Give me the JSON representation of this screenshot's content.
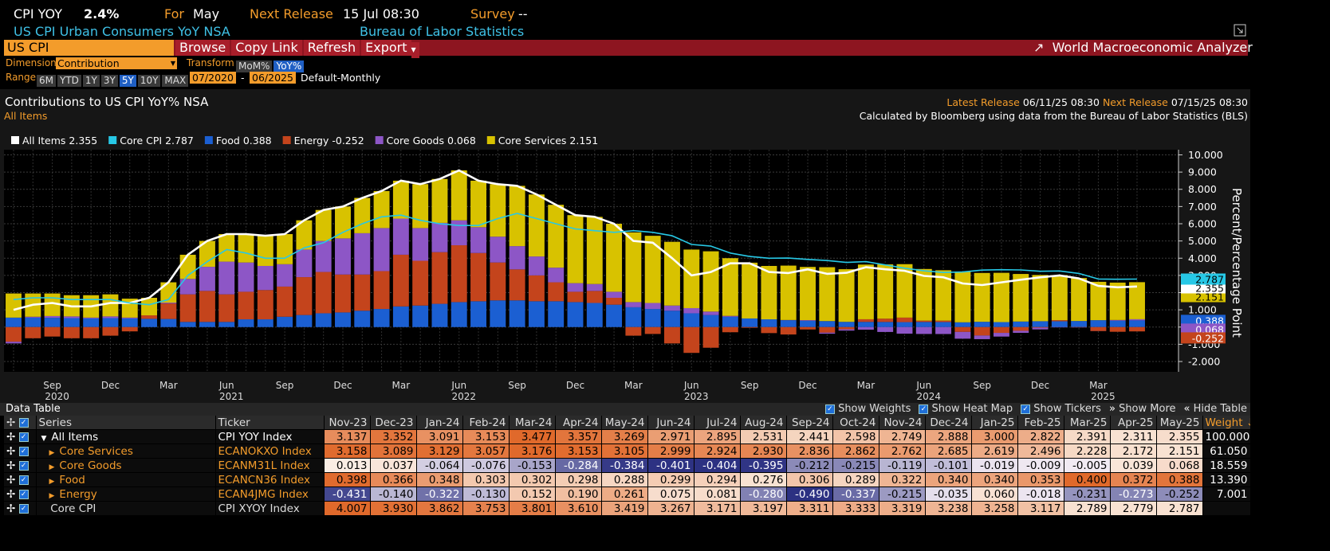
{
  "header": {
    "ticker": "CPI YOY",
    "value": "2.4%",
    "for_label": "For",
    "for_value": "May",
    "next_release_label": "Next Release",
    "next_release_value": "15 Jul 08:30",
    "survey_label": "Survey",
    "survey_value": "--",
    "description": "US CPI Urban Consumers YoY NSA",
    "source": "Bureau of Labor Statistics"
  },
  "toolbar": {
    "search": "US CPI",
    "buttons": [
      "Browse",
      "Copy Link",
      "Refresh",
      "Export"
    ],
    "app": "World Macroeconomic Analyzer"
  },
  "controls": {
    "dimension_label": "Dimension",
    "dimension": "Contribution",
    "transform_label": "Transform",
    "transforms": [
      "MoM%",
      "YoY%"
    ],
    "range_label": "Range",
    "ranges": [
      "6M",
      "YTD",
      "1Y",
      "3Y",
      "5Y",
      "10Y",
      "MAX"
    ],
    "start": "07/2020",
    "separator": "-",
    "end": "06/2025",
    "frequency": "Default-Monthly"
  },
  "chart_data": {
    "type": "bar",
    "title": "Contributions to US CPI YoY% NSA",
    "subtitle": "All Items",
    "latest_release_label": "Latest Release",
    "latest_release": "06/11/25 08:30",
    "next_release_label": "Next Release",
    "next_release": "07/15/25 08:30",
    "note": "Calculated by Bloomberg using data from the Bureau of Labor Statistics (BLS)",
    "y_label": "Percent/Percentage Point",
    "grid": true,
    "categories": [
      null,
      null,
      "Sep",
      null,
      null,
      "Dec",
      null,
      null,
      "Mar",
      null,
      null,
      "Jun",
      null,
      null,
      "Sep",
      null,
      null,
      "Dec",
      null,
      null,
      "Mar",
      null,
      null,
      "Jun",
      null,
      null,
      "Sep",
      null,
      null,
      "Dec",
      null,
      null,
      "Mar",
      null,
      null,
      "Jun",
      null,
      null,
      "Sep",
      null,
      null,
      "Dec",
      null,
      null,
      "Mar",
      null,
      null,
      "Jun",
      null,
      null,
      "Sep",
      null,
      null,
      "Dec",
      null,
      null,
      "Mar",
      null,
      null
    ],
    "year_labels": [
      null,
      null,
      "2020",
      null,
      null,
      null,
      null,
      null,
      null,
      null,
      null,
      "2021",
      null,
      null,
      null,
      null,
      null,
      null,
      null,
      null,
      null,
      null,
      null,
      "2022",
      null,
      null,
      null,
      null,
      null,
      null,
      null,
      null,
      null,
      null,
      null,
      "2023",
      null,
      null,
      null,
      null,
      null,
      null,
      null,
      null,
      null,
      null,
      null,
      "2024",
      null,
      null,
      null,
      null,
      null,
      null,
      null,
      null,
      "2025",
      null,
      null
    ],
    "ylim": [
      -2.6,
      10.3
    ],
    "yticks": [
      {
        "value": -2,
        "label": "-2.000"
      },
      {
        "value": -1,
        "label": "-1.000"
      },
      {
        "value": 0,
        "label": "0.000"
      },
      {
        "value": 1,
        "label": "1.000"
      },
      {
        "value": 2,
        "label": "2.000"
      },
      {
        "value": 3,
        "label": "3.000"
      },
      {
        "value": 4,
        "label": "4.000"
      },
      {
        "value": 5,
        "label": "5.000"
      },
      {
        "value": 6,
        "label": "6.000"
      },
      {
        "value": 7,
        "label": "7.000"
      },
      {
        "value": 8,
        "label": "8.000"
      },
      {
        "value": 9,
        "label": "9.000"
      },
      {
        "value": 10,
        "label": "10.000"
      }
    ],
    "series": [
      {
        "name": "All Items",
        "type": "line",
        "color": "#ffffff",
        "values": [
          1.0,
          1.3,
          1.4,
          1.2,
          1.2,
          1.4,
          1.4,
          1.7,
          2.6,
          4.2,
          5.0,
          5.4,
          5.4,
          5.3,
          5.4,
          6.2,
          6.8,
          7.0,
          7.5,
          7.9,
          8.5,
          8.3,
          8.6,
          9.1,
          8.5,
          8.3,
          8.2,
          7.7,
          7.1,
          6.5,
          6.4,
          6.0,
          5.0,
          4.9,
          4.0,
          3.0,
          3.2,
          3.7,
          3.7,
          3.2,
          3.137,
          3.352,
          3.091,
          3.153,
          3.477,
          3.357,
          3.269,
          2.971,
          2.895,
          2.531,
          2.441,
          2.598,
          2.749,
          2.888,
          3.0,
          2.822,
          2.391,
          2.311,
          2.355
        ]
      },
      {
        "name": "Core CPI",
        "type": "line",
        "color": "#27c8e6",
        "values": [
          1.6,
          1.7,
          1.7,
          1.6,
          1.6,
          1.6,
          1.4,
          1.3,
          1.6,
          3.0,
          3.8,
          4.5,
          4.3,
          4.0,
          4.0,
          4.6,
          4.9,
          5.5,
          6.0,
          6.4,
          6.5,
          6.2,
          6.0,
          5.9,
          5.9,
          6.3,
          6.6,
          6.3,
          6.0,
          5.7,
          5.6,
          5.5,
          5.6,
          5.5,
          5.3,
          4.8,
          4.7,
          4.3,
          4.1,
          4.0,
          4.007,
          3.93,
          3.862,
          3.753,
          3.801,
          3.61,
          3.419,
          3.267,
          3.171,
          3.197,
          3.311,
          3.333,
          3.319,
          3.238,
          3.258,
          3.117,
          2.789,
          2.779,
          2.787
        ]
      },
      {
        "name": "Food",
        "type": "bar",
        "color": "#1b5fd2",
        "values": [
          0.55,
          0.55,
          0.54,
          0.52,
          0.5,
          0.52,
          0.5,
          0.48,
          0.47,
          0.3,
          0.3,
          0.3,
          0.45,
          0.45,
          0.6,
          0.7,
          0.8,
          0.85,
          0.95,
          1.05,
          1.2,
          1.25,
          1.35,
          1.45,
          1.5,
          1.55,
          1.55,
          1.5,
          1.5,
          1.45,
          1.4,
          1.3,
          1.15,
          1.05,
          0.95,
          0.8,
          0.7,
          0.6,
          0.5,
          0.45,
          0.398,
          0.366,
          0.348,
          0.303,
          0.302,
          0.298,
          0.288,
          0.299,
          0.294,
          0.276,
          0.306,
          0.289,
          0.322,
          0.34,
          0.34,
          0.353,
          0.4,
          0.372,
          0.388
        ]
      },
      {
        "name": "Energy",
        "type": "bar",
        "color": "#c4441c",
        "values": [
          -0.85,
          -0.65,
          -0.55,
          -0.65,
          -0.65,
          -0.5,
          -0.25,
          0.2,
          0.9,
          1.6,
          1.8,
          1.6,
          1.6,
          1.7,
          1.75,
          2.2,
          2.4,
          2.2,
          2.1,
          2.2,
          3.0,
          2.6,
          3.0,
          3.3,
          2.8,
          2.2,
          1.8,
          1.5,
          1.1,
          0.6,
          0.7,
          0.4,
          -0.5,
          -0.4,
          -0.95,
          -1.5,
          -1.2,
          -0.3,
          -0.04,
          -0.35,
          -0.431,
          -0.14,
          -0.322,
          -0.13,
          0.152,
          0.19,
          0.261,
          0.075,
          0.081,
          -0.28,
          -0.49,
          -0.337,
          -0.215,
          -0.035,
          0.06,
          -0.018,
          -0.231,
          -0.273,
          -0.252
        ]
      },
      {
        "name": "Core Goods",
        "type": "bar",
        "color": "#8d56c6",
        "values": [
          -0.1,
          0.05,
          0.1,
          0.1,
          0.05,
          0.1,
          0.05,
          0.0,
          0.05,
          0.9,
          1.4,
          1.9,
          1.7,
          1.4,
          1.3,
          1.6,
          1.8,
          2.1,
          2.4,
          2.5,
          2.1,
          1.9,
          1.7,
          1.45,
          1.5,
          1.5,
          1.35,
          1.1,
          0.85,
          0.5,
          0.4,
          0.35,
          0.3,
          0.35,
          0.3,
          0.3,
          0.2,
          0.05,
          0.0,
          0.0,
          0.013,
          0.037,
          -0.064,
          -0.076,
          -0.153,
          -0.284,
          -0.384,
          -0.401,
          -0.404,
          -0.395,
          -0.212,
          -0.215,
          -0.119,
          -0.101,
          -0.019,
          -0.009,
          -0.005,
          0.039,
          0.068
        ]
      },
      {
        "name": "Core Services",
        "type": "bar",
        "color": "#d8c200",
        "values": [
          1.4,
          1.35,
          1.31,
          1.23,
          1.3,
          1.28,
          1.1,
          1.02,
          1.18,
          1.4,
          1.5,
          1.6,
          1.65,
          1.75,
          1.75,
          1.7,
          1.8,
          1.85,
          2.05,
          2.15,
          2.2,
          2.55,
          2.55,
          2.9,
          2.7,
          3.05,
          3.5,
          3.6,
          3.65,
          3.95,
          3.9,
          3.95,
          4.05,
          3.9,
          3.7,
          3.4,
          3.5,
          3.35,
          3.24,
          3.1,
          3.158,
          3.089,
          3.129,
          3.057,
          3.176,
          3.153,
          3.105,
          2.999,
          2.924,
          2.93,
          2.836,
          2.862,
          2.762,
          2.685,
          2.619,
          2.496,
          2.228,
          2.172,
          2.151
        ]
      }
    ]
  },
  "table": {
    "title": "Data Table",
    "options": [
      "Show Weights",
      "Show Heat Map",
      "Show Tickers",
      "Show More",
      "Hide Table"
    ],
    "headers": {
      "series": "Series",
      "ticker": "Ticker",
      "columns": [
        "Nov-23",
        "Dec-23",
        "Jan-24",
        "Feb-24",
        "Mar-24",
        "Apr-24",
        "May-24",
        "Jun-24",
        "Jul-24",
        "Aug-24",
        "Sep-24",
        "Oct-24",
        "Nov-24",
        "Dec-24",
        "Jan-25",
        "Feb-25",
        "Mar-25",
        "Apr-25",
        "May-25"
      ],
      "weight": "Weight ↓"
    },
    "rows": [
      {
        "name": "All Items",
        "ticker": "CPI YOY Index",
        "values": [
          "3.137",
          "3.352",
          "3.091",
          "3.153",
          "3.477",
          "3.357",
          "3.269",
          "2.971",
          "2.895",
          "2.531",
          "2.441",
          "2.598",
          "2.749",
          "2.888",
          "3.000",
          "2.822",
          "2.391",
          "2.311",
          "2.355"
        ],
        "weight": "100.000",
        "children": [
          {
            "name": "Core Services",
            "ticker": "ECANOKXO Index",
            "values": [
              "3.158",
              "3.089",
              "3.129",
              "3.057",
              "3.176",
              "3.153",
              "3.105",
              "2.999",
              "2.924",
              "2.930",
              "2.836",
              "2.862",
              "2.762",
              "2.685",
              "2.619",
              "2.496",
              "2.228",
              "2.172",
              "2.151"
            ],
            "weight": "61.050"
          },
          {
            "name": "Core Goods",
            "ticker": "ECANM31L Index",
            "values": [
              "0.013",
              "0.037",
              "-0.064",
              "-0.076",
              "-0.153",
              "-0.284",
              "-0.384",
              "-0.401",
              "-0.404",
              "-0.395",
              "-0.212",
              "-0.215",
              "-0.119",
              "-0.101",
              "-0.019",
              "-0.009",
              "-0.005",
              "0.039",
              "0.068"
            ],
            "weight": "18.559"
          },
          {
            "name": "Food",
            "ticker": "ECANCN36 Index",
            "values": [
              "0.398",
              "0.366",
              "0.348",
              "0.303",
              "0.302",
              "0.298",
              "0.288",
              "0.299",
              "0.294",
              "0.276",
              "0.306",
              "0.289",
              "0.322",
              "0.340",
              "0.340",
              "0.353",
              "0.400",
              "0.372",
              "0.388"
            ],
            "weight": "13.390"
          },
          {
            "name": "Energy",
            "ticker": "ECAN4JMG Index",
            "values": [
              "-0.431",
              "-0.140",
              "-0.322",
              "-0.130",
              "0.152",
              "0.190",
              "0.261",
              "0.075",
              "0.081",
              "-0.280",
              "-0.490",
              "-0.337",
              "-0.215",
              "-0.035",
              "0.060",
              "-0.018",
              "-0.231",
              "-0.273",
              "-0.252"
            ],
            "weight": "7.001"
          }
        ]
      },
      {
        "name": "Core CPI",
        "ticker": "CPI XYOY Index",
        "values": [
          "4.007",
          "3.930",
          "3.862",
          "3.753",
          "3.801",
          "3.610",
          "3.419",
          "3.267",
          "3.171",
          "3.197",
          "3.311",
          "3.333",
          "3.319",
          "3.238",
          "3.258",
          "3.117",
          "2.789",
          "2.779",
          "2.787"
        ]
      }
    ]
  }
}
